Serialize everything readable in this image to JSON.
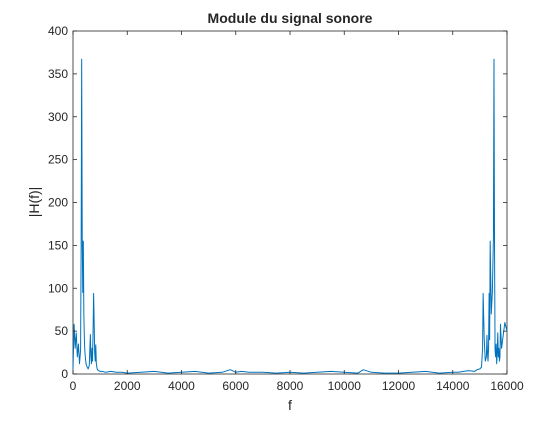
{
  "chart_data": {
    "type": "line",
    "title": "Module du signal sonore",
    "xlabel": "f",
    "ylabel": "|H(f)|",
    "xlim": [
      0,
      16000
    ],
    "ylim": [
      0,
      400
    ],
    "xticks": [
      0,
      2000,
      4000,
      6000,
      8000,
      10000,
      12000,
      14000,
      16000
    ],
    "yticks": [
      0,
      50,
      100,
      150,
      200,
      250,
      300,
      350,
      400
    ],
    "grid": false,
    "line_color": "#0072BD",
    "series": [
      {
        "x": [
          0,
          40,
          80,
          120,
          160,
          200,
          240,
          280,
          300,
          320,
          340,
          360,
          380,
          400,
          420,
          440,
          460,
          480,
          520,
          560,
          600,
          640,
          660,
          680,
          700,
          720,
          740,
          760,
          780,
          800,
          820,
          840,
          860,
          880,
          900,
          940,
          1000,
          1100,
          1200,
          1400,
          1600,
          1800,
          2000,
          2500,
          3000,
          3500,
          4000,
          4500,
          5000,
          5500,
          5800,
          6000,
          6200,
          6500,
          7000,
          7500,
          8000,
          8500,
          9000,
          9500,
          10000,
          10500,
          10700,
          11000,
          11500,
          12000,
          12500,
          13000,
          13500,
          14000,
          14200,
          14400,
          14600,
          14800,
          14900,
          15000,
          15060,
          15100,
          15120,
          15160,
          15200,
          15240,
          15260,
          15280,
          15300,
          15320,
          15340,
          15360,
          15380,
          15420,
          15460,
          15500,
          15520,
          15540,
          15560,
          15580,
          15600,
          15620,
          15640,
          15660,
          15680,
          15700,
          15720,
          15740,
          15760,
          15800,
          15840,
          15880,
          15920,
          15960,
          16000
        ],
        "values": [
          5,
          58,
          30,
          48,
          20,
          35,
          12,
          28,
          150,
          367,
          160,
          95,
          155,
          70,
          40,
          25,
          18,
          12,
          8,
          6,
          10,
          46,
          20,
          12,
          30,
          15,
          50,
          94,
          60,
          25,
          15,
          34,
          12,
          8,
          5,
          4,
          3,
          3,
          2,
          3,
          2,
          2,
          1,
          2,
          3,
          1,
          2,
          3,
          1,
          2,
          5,
          2,
          3,
          2,
          2,
          1,
          2,
          1,
          2,
          3,
          2,
          1,
          5,
          2,
          1,
          1,
          2,
          3,
          1,
          2,
          2,
          3,
          4,
          3,
          5,
          6,
          8,
          30,
          94,
          40,
          15,
          20,
          45,
          25,
          15,
          30,
          94,
          40,
          155,
          70,
          95,
          160,
          367,
          150,
          28,
          20,
          35,
          12,
          25,
          48,
          20,
          30,
          15,
          20,
          58,
          30,
          40,
          50,
          60,
          55,
          50
        ]
      }
    ]
  }
}
